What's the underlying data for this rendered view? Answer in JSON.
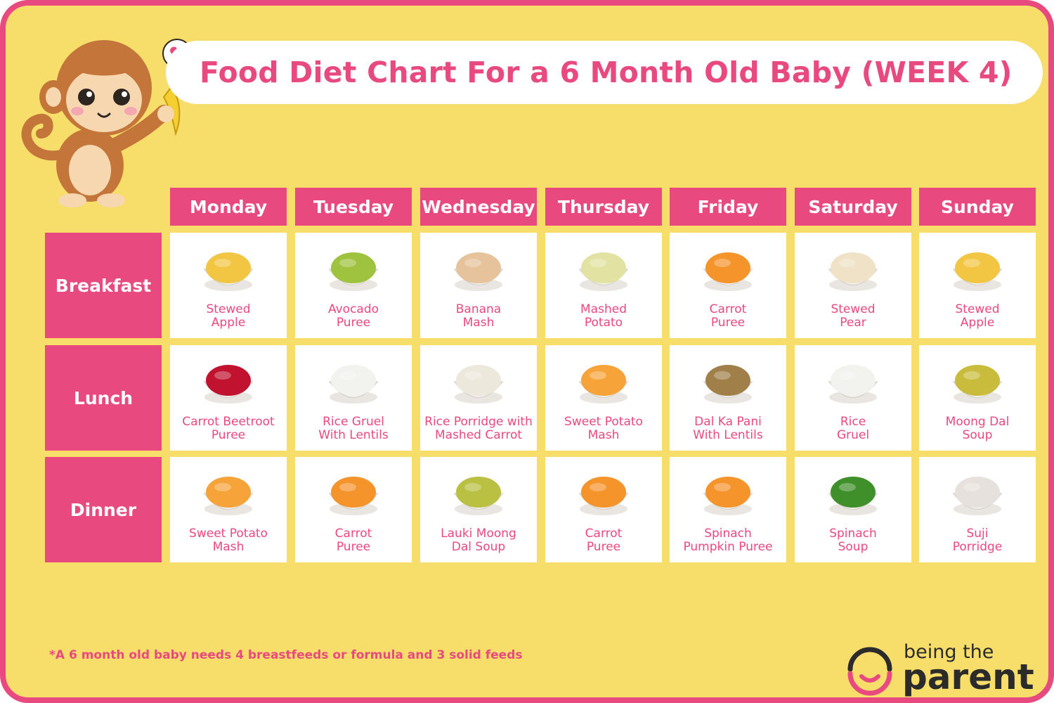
{
  "title": "Food Diet Chart For a 6 Month Old Baby (WEEK 4)",
  "days": [
    "Monday",
    "Tuesday",
    "Wednesday",
    "Thursday",
    "Friday",
    "Saturday",
    "Sunday"
  ],
  "meals": [
    {
      "label": "Breakfast",
      "items": [
        {
          "line1": "Stewed",
          "line2": "Apple",
          "icon": "stewed-apple-bowl",
          "color": "#f2c542"
        },
        {
          "line1": "Avocado",
          "line2": "Puree",
          "icon": "avocado-puree-bowl",
          "color": "#9fc33e"
        },
        {
          "line1": "Banana",
          "line2": "Mash",
          "icon": "banana-mash-bowl",
          "color": "#e6c39a"
        },
        {
          "line1": "Mashed",
          "line2": "Potato",
          "icon": "mashed-potato-bowl",
          "color": "#e2e3a2"
        },
        {
          "line1": "Carrot",
          "line2": "Puree",
          "icon": "carrot-puree-bowl",
          "color": "#f5942b"
        },
        {
          "line1": "Stewed",
          "line2": "Pear",
          "icon": "stewed-pear-bowl",
          "color": "#efe2c6"
        },
        {
          "line1": "Stewed",
          "line2": "Apple",
          "icon": "stewed-apple-bowl",
          "color": "#f2c542"
        }
      ]
    },
    {
      "label": "Lunch",
      "items": [
        {
          "line1": "Carrot Beetroot",
          "line2": "Puree",
          "icon": "beetroot-puree",
          "color": "#c1122f"
        },
        {
          "line1": "Rice Gruel",
          "line2": "With Lentils",
          "icon": "rice-gruel-bowl",
          "color": "#f2f2ef"
        },
        {
          "line1": "Rice Porridge with",
          "line2": "Mashed Carrot",
          "icon": "rice-porridge-bowl",
          "color": "#ede8dc"
        },
        {
          "line1": "Sweet Potato",
          "line2": "Mash",
          "icon": "sweet-potato-bowl",
          "color": "#f6a43a"
        },
        {
          "line1": "Dal Ka Pani",
          "line2": "With Lentils",
          "icon": "dal-bowl",
          "color": "#a08048"
        },
        {
          "line1": "Rice",
          "line2": "Gruel",
          "icon": "rice-gruel-bowl",
          "color": "#f2f2ef"
        },
        {
          "line1": "Moong Dal",
          "line2": "Soup",
          "icon": "moong-dal-soup-bowl",
          "color": "#c9bc3c"
        }
      ]
    },
    {
      "label": "Dinner",
      "items": [
        {
          "line1": "Sweet Potato",
          "line2": "Mash",
          "icon": "sweet-potato-bowl",
          "color": "#f6a43a"
        },
        {
          "line1": "Carrot",
          "line2": "Puree",
          "icon": "carrot-puree-bowl",
          "color": "#f5942b"
        },
        {
          "line1": "Lauki Moong",
          "line2": "Dal Soup",
          "icon": "lauki-soup-bowl",
          "color": "#b9c042"
        },
        {
          "line1": "Carrot",
          "line2": "Puree",
          "icon": "carrot-puree-bowl",
          "color": "#f5942b"
        },
        {
          "line1": "Spinach",
          "line2": "Pumpkin Puree",
          "icon": "pumpkin-puree-bowl",
          "color": "#f5942b"
        },
        {
          "line1": "Spinach",
          "line2": "Soup",
          "icon": "spinach-soup-bowl",
          "color": "#3f8f2a"
        },
        {
          "line1": "Suji",
          "line2": "Porridge",
          "icon": "suji-porridge-bowl",
          "color": "#e6e1dc"
        }
      ]
    }
  ],
  "footnote": "*A 6 month old baby needs 4 breastfeeds or formula and 3 solid feeds",
  "logo": {
    "line1": "being the",
    "line2": "parent"
  },
  "colors": {
    "accent": "#e8497f",
    "background": "#f7dd6a",
    "card": "#ffffff"
  }
}
